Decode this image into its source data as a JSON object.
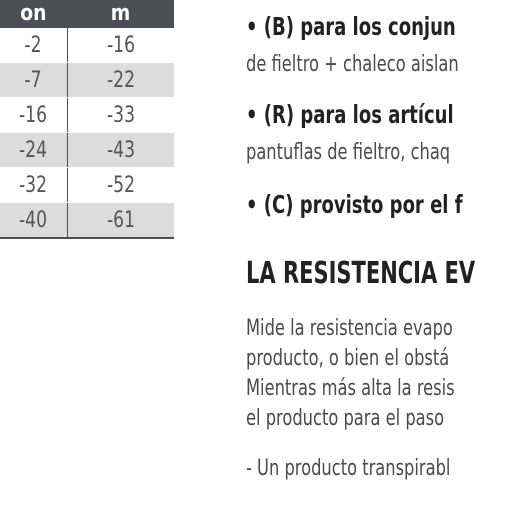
{
  "table": {
    "headers": [
      "on",
      "m"
    ],
    "rows": [
      [
        "-2",
        "-16"
      ],
      [
        "-7",
        "-22"
      ],
      [
        "-16",
        "-33"
      ],
      [
        "-24",
        "-43"
      ],
      [
        "-32",
        "-52"
      ],
      [
        "-40",
        "-61"
      ]
    ]
  },
  "text": {
    "bullet_b_title": "• (B) para los conjun",
    "bullet_b_body": "de fieltro + chaleco aislan",
    "bullet_r_title": "• (R) para los artícul",
    "bullet_r_body": "pantuflas de fieltro, chaq",
    "bullet_c_title": "• (C) provisto por el f",
    "heading": "LA RESISTENCIA EV",
    "para_line1": "Mide la resistencia evapo",
    "para_line2": "producto, o bien el obstá",
    "para_line3": "Mientras más alta la resis",
    "para_line4": "el producto para el paso",
    "para_line5": "- Un producto transpirabl"
  }
}
